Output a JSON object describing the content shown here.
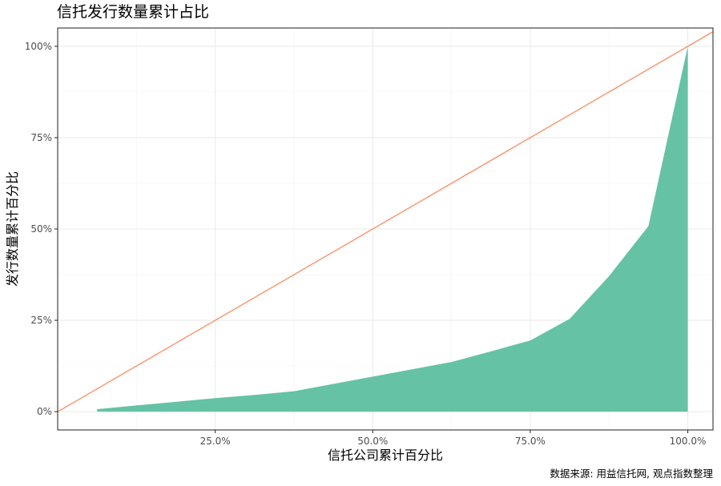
{
  "chart_data": {
    "type": "area",
    "title": "信托发行数量累计占比",
    "xlabel": "信托公司累计百分比",
    "ylabel": "发行数量累计百分比",
    "caption": "数据来源: 用益信托网, 观点指数整理",
    "xlim": [
      0.0,
      1.04
    ],
    "ylim": [
      -0.05,
      1.05
    ],
    "x_ticks": [
      0.25,
      0.5,
      0.75,
      1.0
    ],
    "x_tick_labels": [
      "25.0%",
      "50.0%",
      "75.0%",
      "100.0%"
    ],
    "y_ticks": [
      0.0,
      0.25,
      0.5,
      0.75,
      1.0
    ],
    "y_tick_labels": [
      "0%",
      "25%",
      "50%",
      "75%",
      "100%"
    ],
    "grid": true,
    "series": [
      {
        "type": "area",
        "color": "#66c2a5",
        "x": [
          0.0625,
          0.125,
          0.1875,
          0.25,
          0.3125,
          0.375,
          0.4375,
          0.5,
          0.5625,
          0.625,
          0.6875,
          0.75,
          0.8125,
          0.875,
          0.9375,
          1.0
        ],
        "y": [
          0.007,
          0.017,
          0.027,
          0.037,
          0.046,
          0.056,
          0.076,
          0.096,
          0.116,
          0.136,
          0.165,
          0.195,
          0.254,
          0.371,
          0.508,
          1.0
        ]
      },
      {
        "type": "line",
        "color": "#fc8d62",
        "x": [
          0.0,
          1.04
        ],
        "y": [
          0.0,
          1.04
        ]
      }
    ]
  }
}
